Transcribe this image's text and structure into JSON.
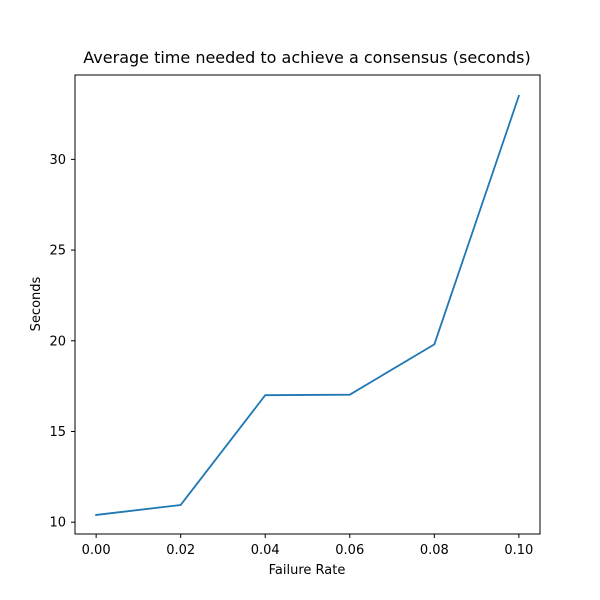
{
  "chart_data": {
    "type": "line",
    "title": "Average time needed to achieve a consensus (seconds)",
    "xlabel": "Failure Rate",
    "ylabel": "Seconds",
    "xlim": [
      -0.005,
      0.105
    ],
    "ylim": [
      9.35,
      34.65
    ],
    "x_ticks": [
      0.0,
      0.02,
      0.04,
      0.06,
      0.08,
      0.1
    ],
    "x_tick_labels": [
      "0.00",
      "0.02",
      "0.04",
      "0.06",
      "0.08",
      "0.10"
    ],
    "y_ticks": [
      10,
      15,
      20,
      25,
      30
    ],
    "y_tick_labels": [
      "10",
      "15",
      "20",
      "25",
      "30"
    ],
    "grid": false,
    "series": [
      {
        "color": "#1f77b4",
        "x": [
          0.0,
          0.02,
          0.04,
          0.06,
          0.08,
          0.1
        ],
        "y": [
          10.4,
          10.95,
          17.0,
          17.03,
          19.8,
          33.5
        ]
      }
    ]
  }
}
